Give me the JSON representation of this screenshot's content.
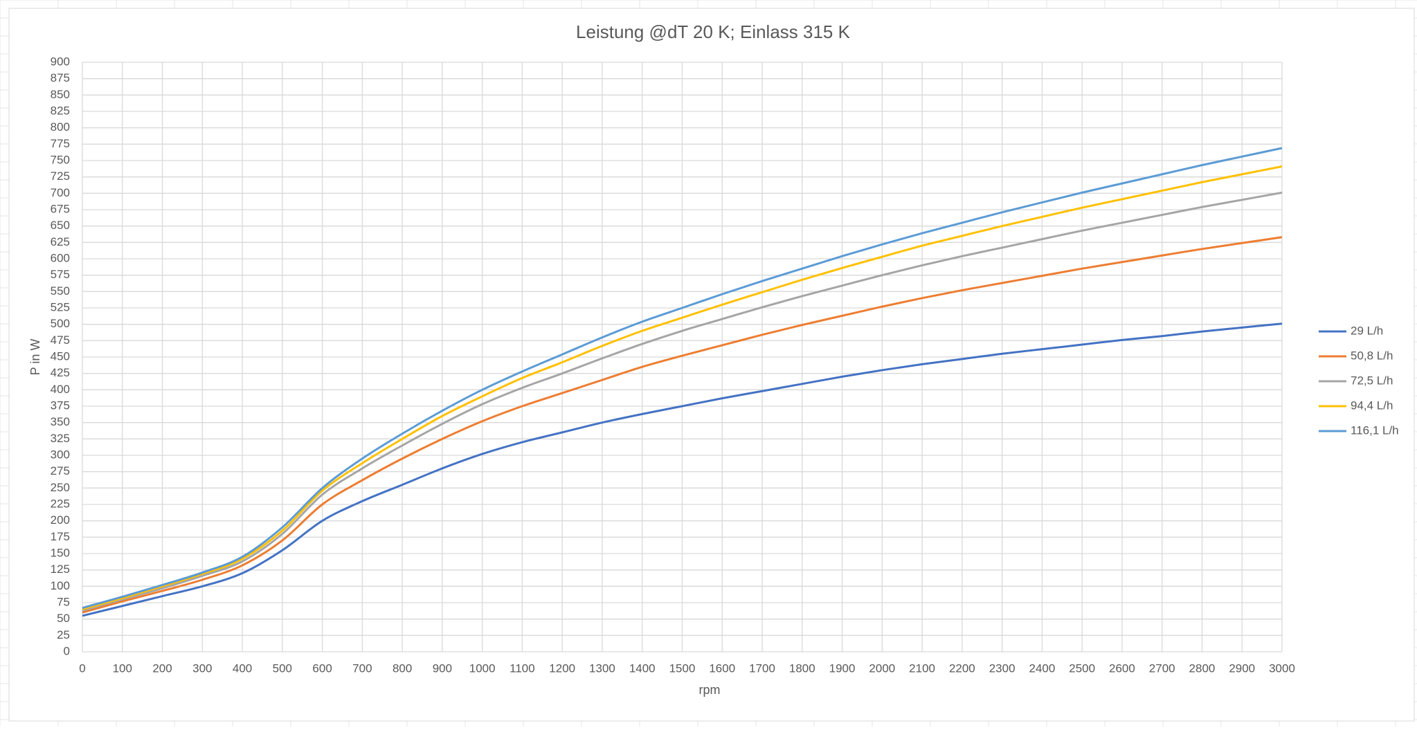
{
  "chart_data": {
    "type": "line",
    "title": "Leistung @dT 20 K; Einlass 315 K",
    "x_label": "rpm",
    "y_label": "P in W",
    "x": [
      0,
      100,
      200,
      300,
      400,
      500,
      600,
      700,
      800,
      900,
      1000,
      1100,
      1200,
      1300,
      1400,
      1500,
      1600,
      1700,
      1800,
      1900,
      2000,
      2100,
      2200,
      2300,
      2400,
      2500,
      2600,
      2700,
      2800,
      2900,
      3000
    ],
    "xlim": [
      0,
      3000
    ],
    "xticks": [
      0,
      100,
      200,
      300,
      400,
      500,
      600,
      700,
      800,
      900,
      1000,
      1100,
      1200,
      1300,
      1400,
      1500,
      1600,
      1700,
      1800,
      1900,
      2000,
      2100,
      2200,
      2300,
      2400,
      2500,
      2600,
      2700,
      2800,
      2900,
      3000
    ],
    "ylim": [
      0,
      900
    ],
    "yticks": [
      0,
      25,
      50,
      75,
      100,
      125,
      150,
      175,
      200,
      225,
      250,
      275,
      300,
      325,
      350,
      375,
      400,
      425,
      450,
      475,
      500,
      525,
      550,
      575,
      600,
      625,
      650,
      675,
      700,
      725,
      750,
      775,
      800,
      825,
      850,
      875,
      900
    ],
    "grid": true,
    "legend": "right",
    "series": [
      {
        "name": "29 L/h",
        "color": "#4472c4",
        "values": [
          55,
          70,
          85,
          100,
          120,
          155,
          200,
          230,
          255,
          280,
          302,
          320,
          335,
          350,
          363,
          375,
          387,
          398,
          409,
          420,
          430,
          439,
          447,
          455,
          462,
          469,
          476,
          482,
          489,
          495,
          501
        ]
      },
      {
        "name": "50,8 L/h",
        "color": "#ed7d31",
        "values": [
          60,
          77,
          93,
          110,
          132,
          170,
          225,
          262,
          295,
          325,
          352,
          375,
          395,
          415,
          435,
          452,
          468,
          484,
          499,
          513,
          527,
          540,
          552,
          563,
          574,
          585,
          595,
          605,
          615,
          624,
          633
        ]
      },
      {
        "name": "72,5 L/h",
        "color": "#a5a5a5",
        "values": [
          63,
          80,
          97,
          116,
          138,
          180,
          240,
          280,
          315,
          348,
          378,
          403,
          425,
          448,
          470,
          490,
          508,
          526,
          543,
          559,
          575,
          590,
          604,
          617,
          630,
          643,
          655,
          667,
          679,
          690,
          701
        ]
      },
      {
        "name": "94,4 L/h",
        "color": "#ffc000",
        "values": [
          65,
          82,
          100,
          119,
          142,
          185,
          246,
          288,
          325,
          360,
          390,
          418,
          442,
          467,
          490,
          510,
          530,
          549,
          568,
          586,
          603,
          620,
          635,
          650,
          664,
          678,
          691,
          704,
          717,
          729,
          741
        ]
      },
      {
        "name": "116,1 L/h",
        "color": "#5b9bd5",
        "values": [
          67,
          84,
          102,
          121,
          145,
          190,
          250,
          295,
          333,
          368,
          400,
          428,
          454,
          480,
          504,
          525,
          546,
          566,
          585,
          604,
          622,
          639,
          655,
          671,
          686,
          701,
          715,
          729,
          743,
          756,
          769
        ]
      }
    ]
  }
}
